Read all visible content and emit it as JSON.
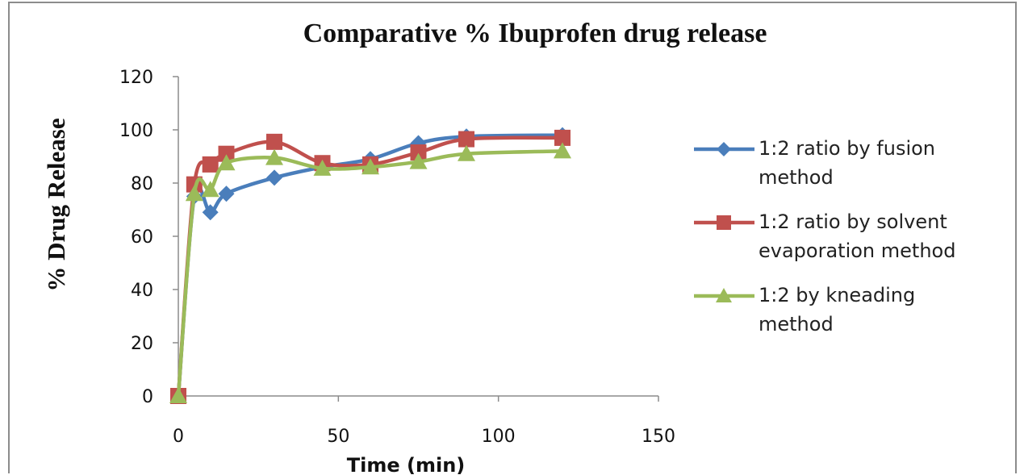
{
  "chart_data": {
    "type": "line",
    "title": "Comparative % Ibuprofen drug release",
    "xlabel": "Time (min)",
    "ylabel": "% Drug Release",
    "xlim": [
      0,
      150
    ],
    "ylim": [
      0,
      120
    ],
    "xticks": [
      0,
      50,
      100,
      150
    ],
    "yticks": [
      0,
      20,
      40,
      60,
      80,
      100,
      120
    ],
    "grid": false,
    "legend_position": "right",
    "series": [
      {
        "name": "1:2 ratio by fusion method",
        "legend_lines": [
          "1:2 ratio by fusion",
          "method"
        ],
        "color": "#4a7ebb",
        "marker": "diamond",
        "x": [
          0,
          5,
          10,
          15,
          30,
          45,
          60,
          75,
          90,
          120
        ],
        "y": [
          0,
          75,
          69,
          76,
          82,
          86,
          89,
          95,
          97.5,
          98
        ]
      },
      {
        "name": "1:2 ratio by solvent evaporation method",
        "legend_lines": [
          "1:2 ratio by solvent",
          "evaporation method"
        ],
        "color": "#c0504d",
        "marker": "square",
        "x": [
          0,
          5,
          10,
          15,
          30,
          45,
          60,
          75,
          90,
          120
        ],
        "y": [
          0,
          79.5,
          87,
          91,
          95.5,
          87.5,
          87,
          91.5,
          96.5,
          97
        ]
      },
      {
        "name": "1:2 by kneading method",
        "legend_lines": [
          "1:2 by kneading",
          "method"
        ],
        "color": "#9bbb59",
        "marker": "triangle",
        "x": [
          0,
          5,
          10,
          15,
          30,
          45,
          60,
          75,
          90,
          120
        ],
        "y": [
          0,
          76,
          77.5,
          87.5,
          89.5,
          85.5,
          86,
          88,
          91,
          92
        ]
      }
    ]
  }
}
